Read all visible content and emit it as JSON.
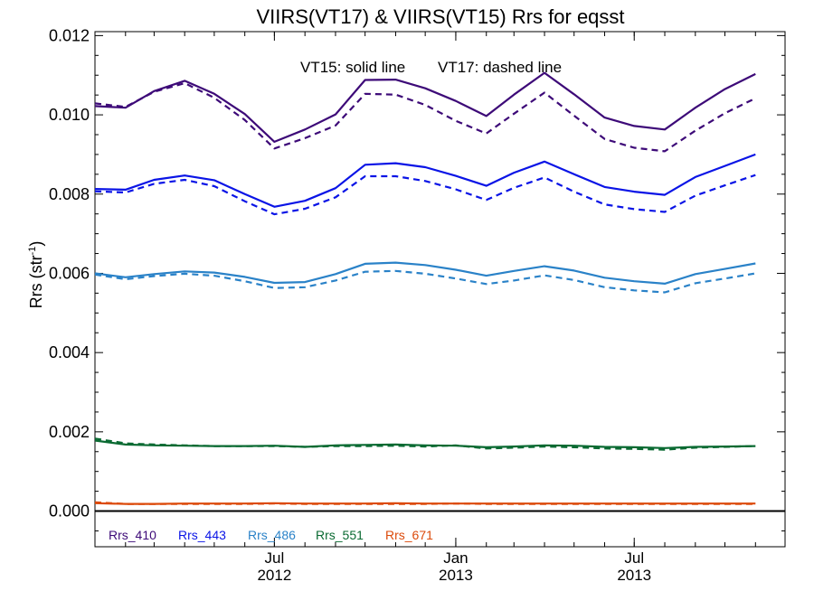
{
  "chart_data": {
    "type": "line",
    "title": "VIIRS(VT17) & VIIRS(VT15)  Rrs for eqsst",
    "ylabel": "Rrs (str",
    "ylabel_sup": "-1",
    "ylabel_end": ")",
    "annotation_solid": "VT15: solid line",
    "annotation_dashed": "VT17: dashed line",
    "ylim": [
      -0.0009,
      0.0121
    ],
    "y_ticks": [
      {
        "value": 0.0,
        "label": "0.000"
      },
      {
        "value": 0.002,
        "label": "0.002"
      },
      {
        "value": 0.004,
        "label": "0.004"
      },
      {
        "value": 0.006,
        "label": "0.006"
      },
      {
        "value": 0.008,
        "label": "0.008"
      },
      {
        "value": 0.01,
        "label": "0.010"
      },
      {
        "value": 0.012,
        "label": "0.012"
      }
    ],
    "xlim": [
      "2012-01-01",
      "2013-12-01"
    ],
    "x_ticks": [
      {
        "date": "2012-07-01",
        "month": "Jul",
        "year": "2012"
      },
      {
        "date": "2013-01-01",
        "month": "Jan",
        "year": "2013"
      },
      {
        "date": "2013-07-01",
        "month": "Jul",
        "year": "2013"
      }
    ],
    "x": [
      "2012-01-01",
      "2012-02-01",
      "2012-03-01",
      "2012-04-01",
      "2012-05-01",
      "2012-06-01",
      "2012-07-01",
      "2012-08-01",
      "2012-09-01",
      "2012-10-01",
      "2012-11-01",
      "2012-12-01",
      "2013-01-01",
      "2013-02-01",
      "2013-03-01",
      "2013-04-01",
      "2013-05-01",
      "2013-06-01",
      "2013-07-01",
      "2013-08-01",
      "2013-09-01",
      "2013-10-01",
      "2013-11-01"
    ],
    "series": [
      {
        "name": "Rrs_410",
        "color": "#3d0a78",
        "solid": [
          0.01022,
          0.01018,
          0.0106,
          0.01086,
          0.01053,
          0.01002,
          0.00932,
          0.00963,
          0.01001,
          0.01088,
          0.01089,
          0.01067,
          0.01035,
          0.00997,
          0.01051,
          0.01106,
          0.01052,
          0.00993,
          0.00972,
          0.00963,
          0.01018,
          0.01065,
          0.01103
        ],
        "dashed": [
          0.01029,
          0.0102,
          0.01058,
          0.0108,
          0.01043,
          0.00987,
          0.00915,
          0.00941,
          0.00973,
          0.01053,
          0.01051,
          0.01025,
          0.00985,
          0.00953,
          0.01003,
          0.01056,
          0.00998,
          0.00939,
          0.00917,
          0.00908,
          0.0096,
          0.01004,
          0.01042
        ]
      },
      {
        "name": "Rrs_443",
        "color": "#0a14e6",
        "solid": [
          0.00813,
          0.00811,
          0.00836,
          0.00847,
          0.00835,
          0.008,
          0.00768,
          0.00783,
          0.00815,
          0.00874,
          0.00878,
          0.00868,
          0.00846,
          0.00821,
          0.00854,
          0.00882,
          0.0085,
          0.00818,
          0.00806,
          0.00798,
          0.00843,
          0.00871,
          0.009
        ],
        "dashed": [
          0.00807,
          0.00804,
          0.00826,
          0.00836,
          0.0082,
          0.00782,
          0.00749,
          0.00763,
          0.00792,
          0.00845,
          0.00845,
          0.00833,
          0.00812,
          0.00785,
          0.00816,
          0.00842,
          0.00806,
          0.00774,
          0.00762,
          0.00755,
          0.00796,
          0.00822,
          0.00848
        ]
      },
      {
        "name": "Rrs_486",
        "color": "#2a82c8",
        "solid": [
          0.006,
          0.0059,
          0.00598,
          0.00605,
          0.00602,
          0.00591,
          0.00576,
          0.00578,
          0.00598,
          0.00624,
          0.00627,
          0.00621,
          0.00609,
          0.00594,
          0.00606,
          0.00618,
          0.00607,
          0.00589,
          0.0058,
          0.00574,
          0.00598,
          0.00611,
          0.00625
        ],
        "dashed": [
          0.00597,
          0.00585,
          0.00593,
          0.00599,
          0.00594,
          0.0058,
          0.00563,
          0.00565,
          0.00582,
          0.00604,
          0.00606,
          0.00599,
          0.00587,
          0.00573,
          0.00582,
          0.00595,
          0.00583,
          0.00565,
          0.00557,
          0.00552,
          0.00575,
          0.00587,
          0.006
        ]
      },
      {
        "name": "Rrs_551",
        "color": "#0a6a32",
        "solid": [
          0.00178,
          0.00168,
          0.00166,
          0.00165,
          0.00164,
          0.00164,
          0.00165,
          0.00162,
          0.00166,
          0.00167,
          0.00168,
          0.00166,
          0.00165,
          0.00161,
          0.00163,
          0.00166,
          0.00165,
          0.00162,
          0.00161,
          0.00159,
          0.00162,
          0.00163,
          0.00164
        ],
        "dashed": [
          0.00183,
          0.00171,
          0.00168,
          0.00166,
          0.00164,
          0.00164,
          0.00164,
          0.00162,
          0.00164,
          0.00164,
          0.00165,
          0.00163,
          0.00166,
          0.00158,
          0.0016,
          0.00163,
          0.00161,
          0.00158,
          0.00157,
          0.00155,
          0.0016,
          0.00162,
          0.00164
        ]
      },
      {
        "name": "Rrs_671",
        "color": "#dc4a0a",
        "solid": [
          0.0002,
          0.00018,
          0.00018,
          0.00019,
          0.00019,
          0.00019,
          0.0002,
          0.00019,
          0.00019,
          0.00019,
          0.0002,
          0.00019,
          0.00019,
          0.00019,
          0.00019,
          0.00019,
          0.00019,
          0.00019,
          0.00019,
          0.00019,
          0.00019,
          0.00019,
          0.00019
        ],
        "dashed": [
          0.00022,
          0.00018,
          0.00018,
          0.00018,
          0.00018,
          0.00018,
          0.00019,
          0.00018,
          0.00018,
          0.00018,
          0.00018,
          0.00018,
          0.00019,
          0.00018,
          0.00018,
          0.00018,
          0.00018,
          0.00018,
          0.00018,
          0.00018,
          0.00018,
          0.00018,
          0.00018
        ]
      }
    ],
    "zero_line": true,
    "grid": false,
    "legend_position": "bottom-left"
  }
}
